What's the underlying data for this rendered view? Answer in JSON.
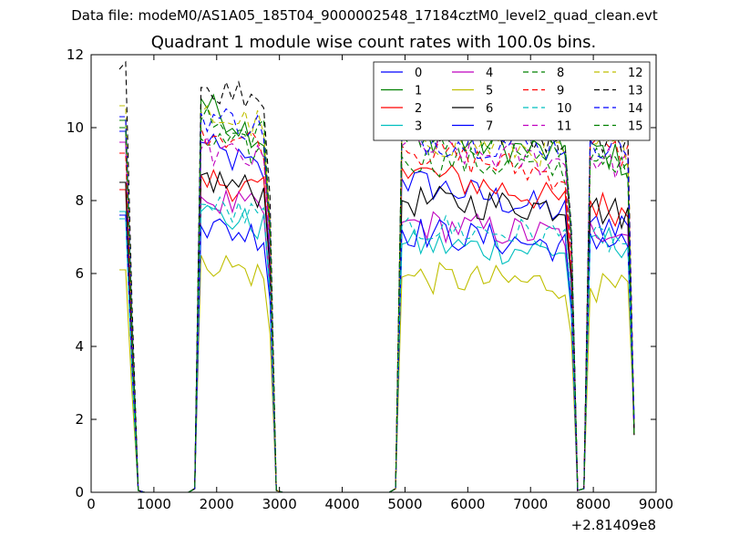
{
  "suptitle": "Data file: modeM0/AS1A05_185T04_9000002548_17184cztM0_level2_quad_clean.evt",
  "chart_data": {
    "type": "line",
    "title": "Quadrant 1 module wise count rates with 100.0s bins.",
    "xlim": [
      0,
      9000
    ],
    "ylim": [
      0,
      12
    ],
    "x_offset_label": "+2.81409e8",
    "xticks": [
      0,
      1000,
      2000,
      3000,
      4000,
      5000,
      6000,
      7000,
      8000,
      9000
    ],
    "yticks": [
      0,
      2,
      4,
      6,
      8,
      10,
      12
    ],
    "x": [
      450,
      550,
      650,
      750,
      850,
      950,
      1050,
      1150,
      1250,
      1350,
      1450,
      1550,
      1650,
      1750,
      1850,
      1950,
      2050,
      2150,
      2250,
      2350,
      2450,
      2550,
      2650,
      2750,
      2850,
      2950,
      3050,
      3150,
      3250,
      3350,
      3450,
      3550,
      3650,
      3750,
      3850,
      3950,
      4050,
      4150,
      4250,
      4350,
      4450,
      4550,
      4650,
      4750,
      4850,
      4950,
      5050,
      5150,
      5250,
      5350,
      5450,
      5550,
      5650,
      5750,
      5850,
      5950,
      6050,
      6150,
      6250,
      6350,
      6450,
      6550,
      6650,
      6750,
      6850,
      6950,
      7050,
      7150,
      7250,
      7350,
      7450,
      7550,
      7650,
      7750,
      7850,
      7950,
      8050,
      8150,
      8250,
      8350,
      8450,
      8550,
      8650
    ],
    "segments": [
      [
        0,
        3
      ],
      [
        12,
        25
      ],
      [
        44,
        73
      ],
      [
        74,
        82
      ]
    ],
    "legend": {
      "ncol": 4,
      "location": "upper right"
    },
    "series": [
      {
        "name": "0",
        "color": "#0000ff",
        "dash": "solid",
        "peak": [
          9.9,
          9.6,
          8.6,
          7.4
        ],
        "base": [
          9.9,
          8.6,
          7.6,
          7.4
        ]
      },
      {
        "name": "1",
        "color": "#008000",
        "dash": "solid",
        "peak": [
          10.2,
          10.8,
          9.9,
          9.6
        ],
        "base": [
          10.2,
          9.5,
          9.2,
          8.9
        ]
      },
      {
        "name": "2",
        "color": "#ff0000",
        "dash": "solid",
        "peak": [
          8.3,
          8.7,
          8.9,
          8.0
        ],
        "base": [
          8.3,
          8.1,
          7.9,
          7.6
        ]
      },
      {
        "name": "3",
        "color": "#00bfbf",
        "dash": "solid",
        "peak": [
          7.7,
          7.7,
          6.8,
          7.0
        ],
        "base": [
          7.7,
          7.2,
          6.6,
          6.8
        ]
      },
      {
        "name": "4",
        "color": "#bf00bf",
        "dash": "solid",
        "peak": [
          9.6,
          8.1,
          7.4,
          7.4
        ],
        "base": [
          9.6,
          7.6,
          7.0,
          7.0
        ]
      },
      {
        "name": "5",
        "color": "#bfbf00",
        "dash": "solid",
        "peak": [
          6.1,
          6.5,
          5.9,
          5.6
        ],
        "base": [
          6.1,
          5.8,
          5.7,
          5.5
        ]
      },
      {
        "name": "6",
        "color": "#000000",
        "dash": "solid",
        "peak": [
          8.5,
          8.7,
          8.0,
          7.8
        ],
        "base": [
          8.5,
          8.1,
          7.8,
          7.6
        ]
      },
      {
        "name": "7",
        "color": "#0000ff",
        "dash": "solid",
        "peak": [
          7.6,
          7.3,
          7.2,
          7.1
        ],
        "base": [
          7.6,
          7.0,
          6.7,
          6.7
        ]
      },
      {
        "name": "8",
        "color": "#008000",
        "dash": "dashed",
        "peak": [
          10.0,
          9.7,
          9.2,
          9.1
        ],
        "base": [
          10.0,
          9.2,
          8.8,
          8.8
        ]
      },
      {
        "name": "9",
        "color": "#ff0000",
        "dash": "dashed",
        "peak": [
          9.3,
          10.0,
          9.5,
          9.5
        ],
        "base": [
          9.3,
          9.5,
          8.6,
          9.2
        ]
      },
      {
        "name": "10",
        "color": "#00bfbf",
        "dash": "dashed",
        "peak": [
          7.5,
          7.9,
          7.3,
          7.0
        ],
        "base": [
          7.5,
          7.4,
          7.0,
          6.8
        ]
      },
      {
        "name": "11",
        "color": "#bf00bf",
        "dash": "dashed",
        "peak": [
          10.3,
          9.4,
          9.5,
          9.2
        ],
        "base": [
          10.3,
          9.0,
          9.0,
          8.9
        ]
      },
      {
        "name": "12",
        "color": "#bfbf00",
        "dash": "dashed",
        "peak": [
          10.6,
          10.4,
          9.7,
          9.6
        ],
        "base": [
          10.6,
          10.0,
          9.3,
          9.3
        ]
      },
      {
        "name": "13",
        "color": "#000000",
        "dash": "dashed",
        "peak": [
          11.8,
          11.1,
          10.0,
          9.8
        ],
        "base": [
          11.6,
          10.8,
          9.7,
          9.6
        ]
      },
      {
        "name": "14",
        "color": "#0000ff",
        "dash": "dashed",
        "peak": [
          10.3,
          10.4,
          9.7,
          9.7
        ],
        "base": [
          10.3,
          9.9,
          9.5,
          9.4
        ]
      },
      {
        "name": "15",
        "color": "#008000",
        "dash": "dashed",
        "peak": [
          10.0,
          10.2,
          9.8,
          9.1
        ],
        "base": [
          10.0,
          9.8,
          9.4,
          8.7
        ]
      }
    ]
  }
}
